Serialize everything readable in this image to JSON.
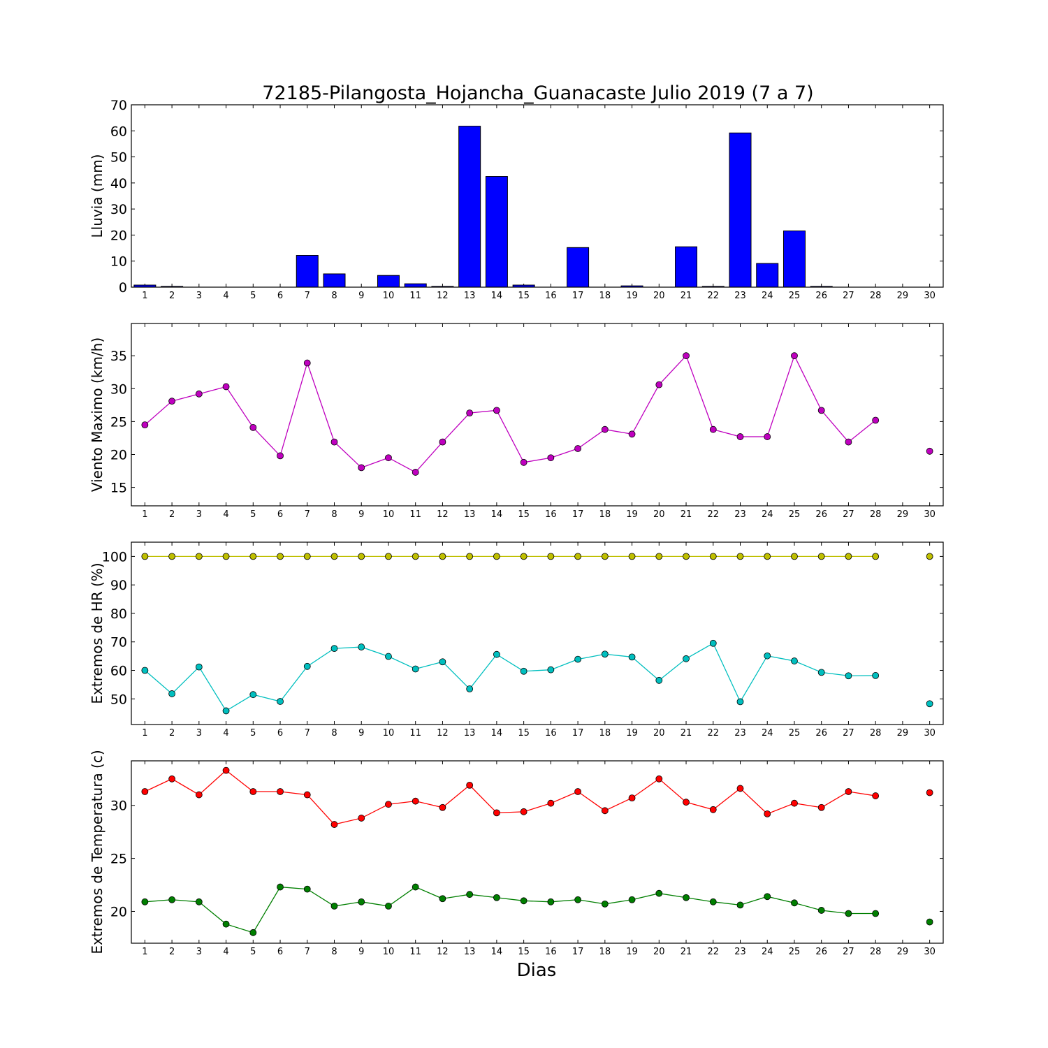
{
  "title": "72185-Pilangosta_Hojancha_Guanacaste Julio 2019  (7 a 7)",
  "xlabel": "Dias",
  "chart_data": [
    {
      "type": "bar",
      "ylabel": "Lluvia (mm)",
      "ylim": [
        0,
        70
      ],
      "yticks": [
        0,
        10,
        20,
        30,
        40,
        50,
        60,
        70
      ],
      "xlim": [
        0.5,
        30.5
      ],
      "categories": [
        1,
        2,
        3,
        4,
        5,
        6,
        7,
        8,
        9,
        10,
        11,
        12,
        13,
        14,
        15,
        16,
        17,
        18,
        19,
        20,
        21,
        22,
        23,
        24,
        25,
        26,
        27,
        28,
        29,
        30
      ],
      "values": [
        0.8,
        0.3,
        0,
        0,
        0,
        0,
        12.2,
        5.1,
        0,
        4.5,
        1.3,
        0.3,
        61.8,
        42.5,
        0.8,
        0,
        15.2,
        0,
        0.5,
        0,
        15.5,
        0.3,
        59.2,
        9.1,
        21.6,
        0.3,
        0,
        0,
        0,
        0
      ],
      "color": "#0000ff",
      "grid": false
    },
    {
      "type": "line",
      "ylabel": "Viento Maximo (km/h)",
      "ylim": [
        12.2,
        39.9
      ],
      "yticks": [
        15,
        20,
        25,
        30,
        35
      ],
      "xlim": [
        0.5,
        30.5
      ],
      "x": [
        1,
        2,
        3,
        4,
        5,
        6,
        7,
        8,
        9,
        10,
        11,
        12,
        13,
        14,
        15,
        16,
        17,
        18,
        19,
        20,
        21,
        22,
        23,
        24,
        25,
        26,
        27,
        28,
        29,
        30
      ],
      "series": [
        {
          "color": "#bf00bf",
          "values": [
            24.5,
            28.1,
            29.2,
            30.3,
            24.1,
            19.8,
            33.9,
            21.9,
            18.0,
            19.5,
            17.3,
            21.9,
            26.3,
            26.7,
            18.8,
            19.5,
            20.9,
            23.8,
            23.1,
            30.6,
            35.0,
            23.8,
            22.7,
            22.7,
            35.0,
            26.7,
            21.9,
            25.2,
            null,
            20.5
          ]
        }
      ],
      "grid": false
    },
    {
      "type": "line",
      "ylabel": "Extremos de HR (%)",
      "ylim": [
        41,
        105
      ],
      "yticks": [
        50,
        60,
        70,
        80,
        90,
        100
      ],
      "xlim": [
        0.5,
        30.5
      ],
      "x": [
        1,
        2,
        3,
        4,
        5,
        6,
        7,
        8,
        9,
        10,
        11,
        12,
        13,
        14,
        15,
        16,
        17,
        18,
        19,
        20,
        21,
        22,
        23,
        24,
        25,
        26,
        27,
        28,
        29,
        30
      ],
      "series": [
        {
          "color": "#bfbf00",
          "values": [
            100,
            100,
            100,
            100,
            100,
            100,
            100,
            100,
            100,
            100,
            100,
            100,
            100,
            100,
            100,
            100,
            100,
            100,
            100,
            100,
            100,
            100,
            100,
            100,
            100,
            100,
            100,
            100,
            null,
            100
          ]
        },
        {
          "color": "#00bfbf",
          "values": [
            60.0,
            51.8,
            61.2,
            45.8,
            51.5,
            49.1,
            61.4,
            67.7,
            68.2,
            64.9,
            60.5,
            63.0,
            53.5,
            65.6,
            59.7,
            60.2,
            63.9,
            65.7,
            64.7,
            56.5,
            64.1,
            69.5,
            49.0,
            65.1,
            63.3,
            59.3,
            58.1,
            58.2,
            null,
            48.3
          ]
        }
      ],
      "grid": false
    },
    {
      "type": "line",
      "ylabel": "Extremos de Temperatura (c)",
      "ylim": [
        17.0,
        34.2
      ],
      "yticks": [
        20,
        25,
        30
      ],
      "xlim": [
        0.5,
        30.5
      ],
      "x": [
        1,
        2,
        3,
        4,
        5,
        6,
        7,
        8,
        9,
        10,
        11,
        12,
        13,
        14,
        15,
        16,
        17,
        18,
        19,
        20,
        21,
        22,
        23,
        24,
        25,
        26,
        27,
        28,
        29,
        30
      ],
      "series": [
        {
          "color": "#ff0000",
          "values": [
            31.3,
            32.5,
            31.0,
            33.3,
            31.3,
            31.3,
            31.0,
            28.2,
            28.8,
            30.1,
            30.4,
            29.8,
            31.9,
            29.3,
            29.4,
            30.2,
            31.3,
            29.5,
            30.7,
            32.5,
            30.3,
            29.6,
            31.6,
            29.2,
            30.2,
            29.8,
            31.3,
            30.9,
            null,
            31.2
          ]
        },
        {
          "color": "#007f00",
          "values": [
            20.9,
            21.1,
            20.9,
            18.8,
            18.0,
            22.3,
            22.1,
            20.5,
            20.9,
            20.5,
            22.3,
            21.2,
            21.6,
            21.3,
            21.0,
            20.9,
            21.1,
            20.7,
            21.1,
            21.7,
            21.3,
            20.9,
            20.6,
            21.4,
            20.8,
            20.1,
            19.8,
            19.8,
            null,
            19.0
          ]
        }
      ],
      "grid": false
    }
  ]
}
